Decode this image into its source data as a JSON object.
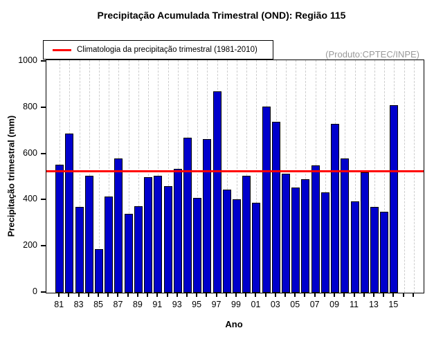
{
  "header": {
    "title": "Precipitação Acumulada Trimestral (OND): Região 115"
  },
  "annotations": {
    "product": "(Produto:CPTEC/INPE)"
  },
  "legend": {
    "climatology_label": "Climatologia da precipitação trimestral (1981-2010)"
  },
  "axes": {
    "xlabel": "Ano",
    "ylabel": "Precipitação trimestral (mm)"
  },
  "chart_data": {
    "type": "bar",
    "title": "Precipitação Acumulada Trimestral (OND): Região 115",
    "xlabel": "Ano",
    "ylabel": "Precipitação trimestral (mm)",
    "ylim": [
      0,
      1000
    ],
    "yticks": [
      0,
      200,
      400,
      600,
      800,
      1000
    ],
    "years": [
      1981,
      1982,
      1983,
      1984,
      1985,
      1986,
      1987,
      1988,
      1989,
      1990,
      1991,
      1992,
      1993,
      1994,
      1995,
      1996,
      1997,
      1998,
      1999,
      2000,
      2001,
      2002,
      2003,
      2004,
      2005,
      2006,
      2007,
      2008,
      2009,
      2010,
      2011,
      2012,
      2013,
      2014,
      2015
    ],
    "values": [
      555,
      690,
      370,
      505,
      190,
      415,
      580,
      340,
      375,
      500,
      505,
      460,
      535,
      670,
      410,
      665,
      870,
      445,
      405,
      505,
      390,
      805,
      740,
      515,
      455,
      490,
      550,
      435,
      730,
      580,
      395,
      520,
      370,
      350,
      810
    ],
    "x_tick_labels": [
      "81",
      "83",
      "85",
      "87",
      "89",
      "91",
      "93",
      "95",
      "97",
      "99",
      "01",
      "03",
      "05",
      "07",
      "09",
      "11",
      "13",
      "15"
    ],
    "axis_last_year": 2017,
    "climatology_mm": 525,
    "legend_entry": "Climatologia da precipitação trimestral (1981-2010)",
    "legend_position": "top-left",
    "grid": "vertical-dashed-per-year",
    "colors": {
      "bar_fill": "#0000cc",
      "bar_border": "#000000",
      "climatology_line": "#ff0000",
      "grid_line": "#cdcdcd",
      "product_text": "#9a9a9a"
    }
  }
}
